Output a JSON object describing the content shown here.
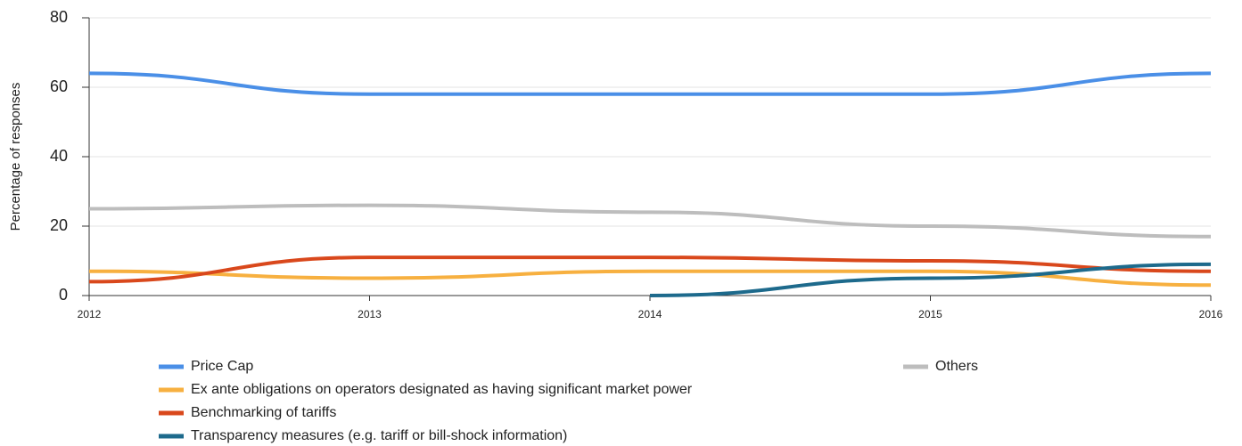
{
  "chart_data": {
    "type": "line",
    "y_label": "Percentage of responses",
    "x": [
      2012,
      2013,
      2014,
      2015,
      2016
    ],
    "xlim": [
      2012,
      2016
    ],
    "xticks": [
      2012,
      2013,
      2014,
      2015,
      2016
    ],
    "ylim": [
      0,
      80
    ],
    "yticks": [
      0,
      20,
      40,
      60,
      80
    ],
    "grid": true,
    "series": [
      {
        "name": "Price Cap",
        "color": "#4a8fe7",
        "values": [
          64,
          58,
          58,
          58,
          64
        ]
      },
      {
        "name": "Others",
        "color": "#bdbdbd",
        "values": [
          25,
          26,
          24,
          20,
          17
        ]
      },
      {
        "name": "Ex ante obligations on operators designated as having significant market power",
        "color": "#f7b040",
        "values": [
          7,
          5,
          7,
          7,
          3
        ]
      },
      {
        "name": "Benchmarking of tariffs",
        "color": "#d9481c",
        "values": [
          4,
          11,
          11,
          10,
          7
        ]
      },
      {
        "name": "Transparency measures (e.g. tariff or bill-shock information)",
        "color": "#1d6a8c",
        "values": [
          null,
          null,
          0,
          5,
          9
        ]
      }
    ]
  }
}
